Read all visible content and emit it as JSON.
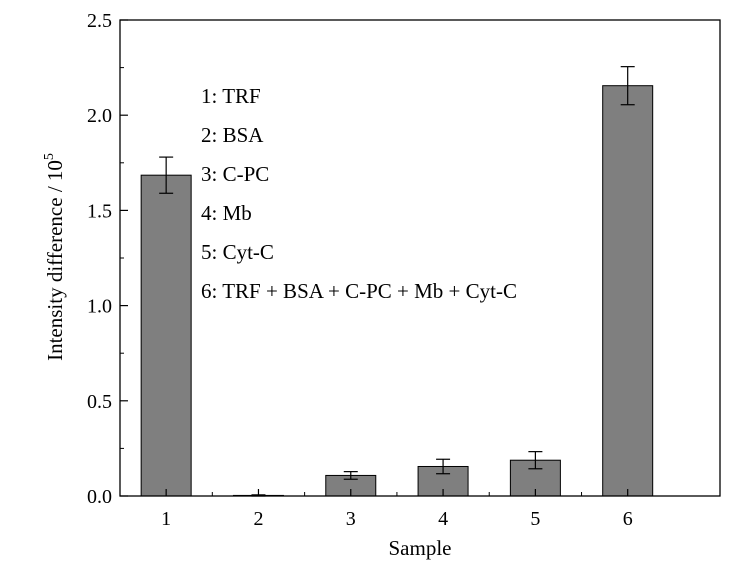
{
  "chart_data": {
    "type": "bar",
    "categories": [
      "1",
      "2",
      "3",
      "4",
      "5",
      "6"
    ],
    "values": [
      1.685,
      0.003,
      0.108,
      0.155,
      0.188,
      2.155
    ],
    "errors": [
      0.095,
      0.003,
      0.02,
      0.038,
      0.045,
      0.1
    ],
    "xlabel": "Sample",
    "ylabel": "Intensity difference / 10",
    "ylabel_superscript": "5",
    "ylim": [
      0,
      2.5
    ],
    "yticks": [
      "0.0",
      "0.5",
      "1.0",
      "1.5",
      "2.0",
      "2.5"
    ],
    "ytick_values": [
      0,
      0.5,
      1.0,
      1.5,
      2.0,
      2.5
    ],
    "grid": false,
    "bar_color": "#7f7f7f",
    "annotations": [
      "1: TRF",
      "2: BSA",
      "3: C-PC",
      "4: Mb",
      "5: Cyt-C",
      "6: TRF + BSA + C-PC + Mb + Cyt-C"
    ]
  }
}
